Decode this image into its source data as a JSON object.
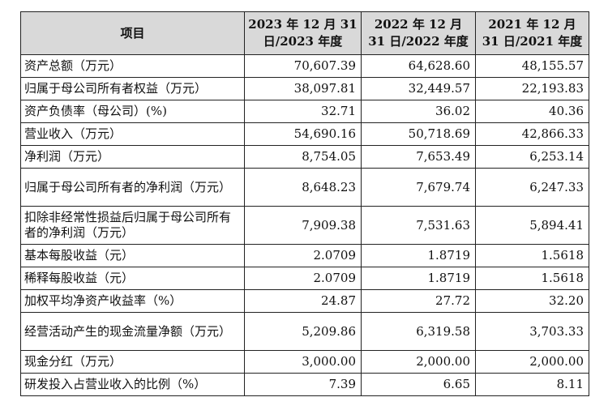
{
  "table": {
    "headers": [
      "项目",
      "2023 年 12 月 31 日/2023 年度",
      "2022 年 12 月 31 日/2022 年度",
      "2021 年 12 月 31 日/2021 年度"
    ],
    "rows": [
      {
        "label": "资产总额（万元）",
        "values": [
          "70,607.39",
          "64,628.60",
          "48,155.57"
        ]
      },
      {
        "label": "归属于母公司所有者权益（万元）",
        "values": [
          "38,097.81",
          "32,449.57",
          "22,193.83"
        ]
      },
      {
        "label": "资产负债率（母公司）(%)",
        "values": [
          "32.71",
          "36.02",
          "40.36"
        ]
      },
      {
        "label": "营业收入（万元）",
        "values": [
          "54,690.16",
          "50,718.69",
          "42,866.33"
        ]
      },
      {
        "label": "净利润（万元）",
        "values": [
          "8,754.05",
          "7,653.49",
          "6,253.14"
        ]
      },
      {
        "label": "归属于母公司所有者的净利润（万元）",
        "values": [
          "8,648.23",
          "7,679.74",
          "6,247.33"
        ]
      },
      {
        "label": "扣除非经常性损益后归属于母公司所有者的净利润（万元）",
        "values": [
          "7,909.38",
          "7,531.63",
          "5,894.41"
        ]
      },
      {
        "label": "基本每股收益（元）",
        "values": [
          "2.0709",
          "1.8719",
          "1.5618"
        ]
      },
      {
        "label": "稀释每股收益（元）",
        "values": [
          "2.0709",
          "1.8719",
          "1.5618"
        ]
      },
      {
        "label": "加权平均净资产收益率（%）",
        "values": [
          "24.87",
          "27.72",
          "32.20"
        ]
      },
      {
        "label": "经营活动产生的现金流量净额（万元）",
        "values": [
          "5,209.86",
          "6,319.58",
          "3,703.33"
        ]
      },
      {
        "label": "现金分红（万元）",
        "values": [
          "3,000.00",
          "2,000.00",
          "2,000.00"
        ]
      },
      {
        "label": "研发投入占营业收入的比例（%）",
        "values": [
          "7.39",
          "6.65",
          "8.11"
        ]
      }
    ]
  }
}
